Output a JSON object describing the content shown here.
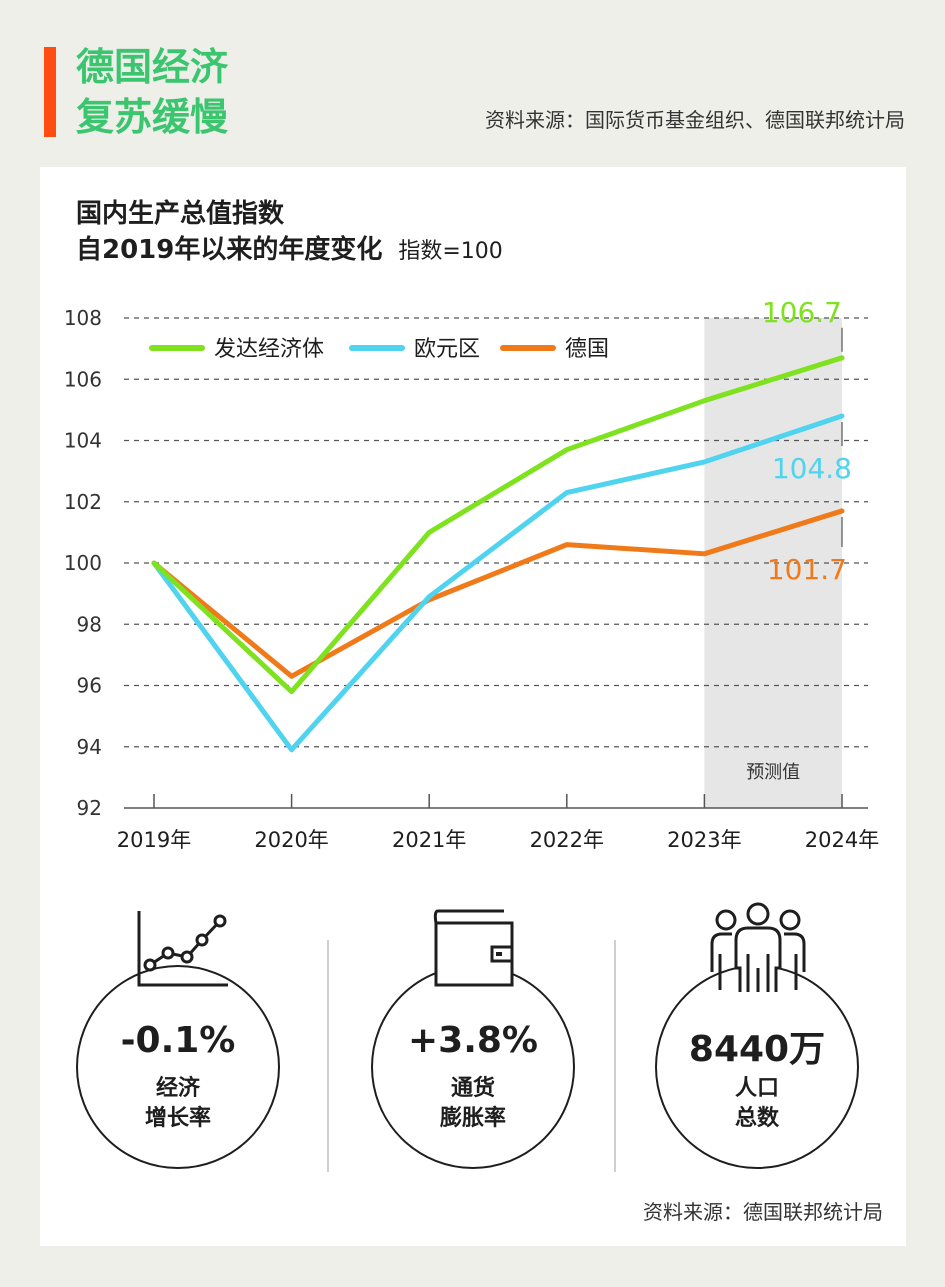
{
  "header": {
    "title_line1": "德国经济",
    "title_line2": "复苏缓慢",
    "source": "资料来源：国际货币基金组织、德国联邦统计局"
  },
  "chart_title": {
    "line1": "国内生产总值指数",
    "line2": "自2019年以来的年度变化",
    "note": "指数=100"
  },
  "colors": {
    "advanced": "#7ee21f",
    "eurozone": "#4fd3ee",
    "germany": "#f07a1a",
    "accent_bar": "#ff4d12",
    "title_green": "#3cc56f"
  },
  "chart_data": {
    "type": "line",
    "categories": [
      "2019年",
      "2020年",
      "2021年",
      "2022年",
      "2023年",
      "2024年"
    ],
    "ylim": [
      92,
      108
    ],
    "yticks": [
      "92",
      "94",
      "96",
      "98",
      "100",
      "102",
      "104",
      "106",
      "108"
    ],
    "series": [
      {
        "name": "发达经济体",
        "values": [
          100,
          95.8,
          101,
          103.7,
          105.3,
          106.7
        ],
        "end_label": "106.7"
      },
      {
        "name": "欧元区",
        "values": [
          100,
          93.9,
          98.9,
          102.3,
          103.3,
          104.8
        ],
        "end_label": "104.8"
      },
      {
        "name": "德国",
        "values": [
          100,
          96.3,
          98.8,
          100.6,
          100.3,
          101.7
        ],
        "end_label": "101.7"
      }
    ],
    "forecast_label": "预测值",
    "grid": "dashed horizontal",
    "legend": "top-left"
  },
  "stats": [
    {
      "value": "-0.1%",
      "label_line1": "经济",
      "label_line2": "增长率",
      "icon": "line-chart-icon"
    },
    {
      "value": "+3.8%",
      "label_line1": "通货",
      "label_line2": "膨胀率",
      "icon": "wallet-icon"
    },
    {
      "value": "8440万",
      "label_line1": "人口",
      "label_line2": "总数",
      "icon": "people-icon"
    }
  ],
  "footer": {
    "source": "资料来源：德国联邦统计局"
  }
}
